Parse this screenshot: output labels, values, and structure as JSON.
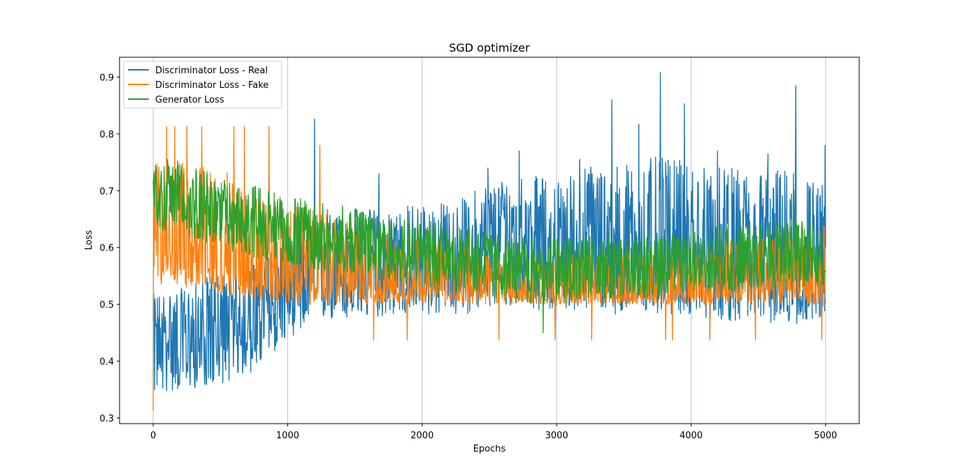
{
  "chart_data": {
    "type": "line",
    "title": "SGD optimizer",
    "xlabel": "Epochs",
    "ylabel": "Loss",
    "xlim": [
      -250,
      5250
    ],
    "ylim": [
      0.29,
      0.935
    ],
    "xticks": [
      0,
      1000,
      2000,
      3000,
      4000,
      5000
    ],
    "xtick_labels": [
      "0",
      "1000",
      "2000",
      "3000",
      "4000",
      "5000"
    ],
    "yticks": [
      0.3,
      0.4,
      0.5,
      0.6,
      0.7,
      0.8,
      0.9
    ],
    "ytick_labels": [
      "0.3",
      "0.4",
      "0.5",
      "0.6",
      "0.7",
      "0.8",
      "0.9"
    ],
    "grid": "vertical lines at x ticks",
    "legend_position": "upper-left",
    "series": [
      {
        "name": "Discriminator Loss - Real",
        "color": "#1f77b4",
        "x": [
          0,
          250,
          500,
          750,
          1000,
          1250,
          1500,
          1750,
          2000,
          2250,
          2500,
          2750,
          3000,
          3250,
          3500,
          3750,
          4000,
          4250,
          4500,
          4750,
          5000
        ],
        "mean": [
          0.44,
          0.43,
          0.44,
          0.47,
          0.52,
          0.55,
          0.56,
          0.57,
          0.57,
          0.57,
          0.59,
          0.64,
          0.58,
          0.58,
          0.57,
          0.58,
          0.58,
          0.57,
          0.56,
          0.55,
          0.57
        ],
        "low": [
          0.34,
          0.35,
          0.36,
          0.38,
          0.44,
          0.47,
          0.47,
          0.48,
          0.48,
          0.48,
          0.49,
          0.49,
          0.49,
          0.49,
          0.48,
          0.48,
          0.48,
          0.47,
          0.47,
          0.46,
          0.48
        ],
        "high": [
          0.52,
          0.53,
          0.56,
          0.58,
          0.62,
          0.66,
          0.67,
          0.67,
          0.68,
          0.68,
          0.72,
          0.73,
          0.72,
          0.75,
          0.75,
          0.76,
          0.75,
          0.74,
          0.74,
          0.74,
          0.71
        ],
        "spikes": [
          [
            1200,
            0.826
          ],
          [
            1680,
            0.73
          ],
          [
            2490,
            0.74
          ],
          [
            2720,
            0.77
          ],
          [
            3170,
            0.755
          ],
          [
            3410,
            0.86
          ],
          [
            3610,
            0.817
          ],
          [
            3770,
            0.908
          ],
          [
            3950,
            0.853
          ],
          [
            4195,
            0.77
          ],
          [
            4570,
            0.765
          ],
          [
            4780,
            0.885
          ],
          [
            4995,
            0.78
          ]
        ]
      },
      {
        "name": "Discriminator Loss - Fake",
        "color": "#ff7f0e",
        "x": [
          0,
          250,
          500,
          750,
          1000,
          1250,
          1500,
          1750,
          2000,
          2250,
          2500,
          2750,
          3000,
          3250,
          3500,
          3750,
          4000,
          4250,
          4500,
          4750,
          5000
        ],
        "mean": [
          0.6,
          0.59,
          0.57,
          0.56,
          0.55,
          0.54,
          0.54,
          0.535,
          0.53,
          0.53,
          0.525,
          0.52,
          0.52,
          0.52,
          0.52,
          0.52,
          0.52,
          0.525,
          0.53,
          0.54,
          0.55
        ],
        "low": [
          0.53,
          0.53,
          0.52,
          0.51,
          0.5,
          0.5,
          0.5,
          0.5,
          0.5,
          0.5,
          0.5,
          0.5,
          0.5,
          0.5,
          0.5,
          0.5,
          0.5,
          0.5,
          0.5,
          0.5,
          0.5
        ],
        "high": [
          0.75,
          0.75,
          0.74,
          0.7,
          0.68,
          0.66,
          0.64,
          0.62,
          0.62,
          0.61,
          0.6,
          0.58,
          0.59,
          0.59,
          0.59,
          0.59,
          0.6,
          0.61,
          0.62,
          0.63,
          0.64
        ],
        "spikes": [
          [
            0,
            0.313
          ],
          [
            100,
            0.813
          ],
          [
            160,
            0.813
          ],
          [
            250,
            0.813
          ],
          [
            360,
            0.813
          ],
          [
            600,
            0.813
          ],
          [
            680,
            0.813
          ],
          [
            860,
            0.813
          ],
          [
            1240,
            0.78
          ],
          [
            1640,
            0.437
          ],
          [
            1890,
            0.437
          ],
          [
            2570,
            0.437
          ],
          [
            2990,
            0.437
          ],
          [
            3260,
            0.437
          ],
          [
            3810,
            0.437
          ],
          [
            3860,
            0.437
          ],
          [
            4140,
            0.437
          ],
          [
            4480,
            0.437
          ],
          [
            4970,
            0.437
          ]
        ]
      },
      {
        "name": "Generator Loss",
        "color": "#2ca02c",
        "x": [
          0,
          250,
          500,
          750,
          1000,
          1250,
          1500,
          1750,
          2000,
          2250,
          2500,
          2750,
          3000,
          3250,
          3500,
          3750,
          4000,
          4250,
          4500,
          4750,
          5000
        ],
        "mean": [
          0.7,
          0.68,
          0.66,
          0.645,
          0.63,
          0.62,
          0.61,
          0.6,
          0.59,
          0.585,
          0.58,
          0.56,
          0.56,
          0.57,
          0.56,
          0.565,
          0.57,
          0.575,
          0.58,
          0.58,
          0.58
        ],
        "low": [
          0.63,
          0.62,
          0.6,
          0.58,
          0.57,
          0.56,
          0.55,
          0.54,
          0.53,
          0.52,
          0.51,
          0.5,
          0.5,
          0.51,
          0.51,
          0.51,
          0.52,
          0.52,
          0.53,
          0.53,
          0.53
        ],
        "high": [
          0.76,
          0.75,
          0.72,
          0.71,
          0.69,
          0.68,
          0.67,
          0.66,
          0.65,
          0.64,
          0.63,
          0.62,
          0.62,
          0.63,
          0.62,
          0.62,
          0.63,
          0.64,
          0.64,
          0.65,
          0.64
        ],
        "spikes": [
          [
            2900,
            0.45
          ],
          [
            4760,
            0.73
          ]
        ]
      }
    ]
  }
}
